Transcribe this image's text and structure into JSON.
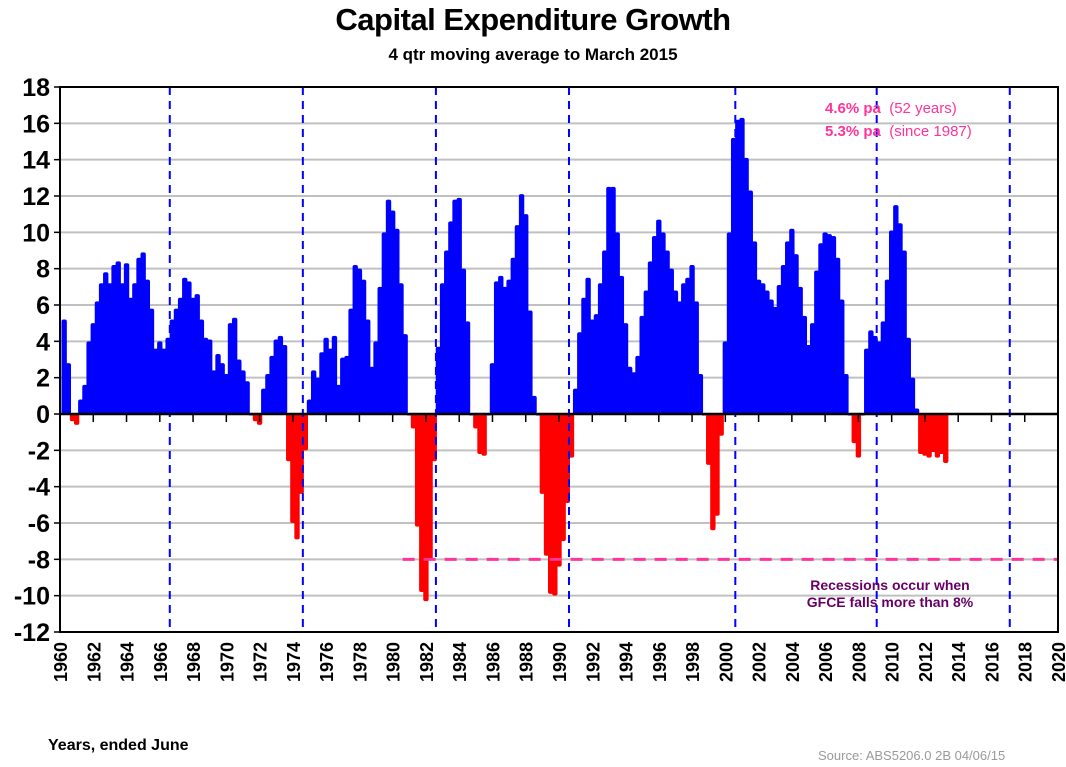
{
  "chart_data": {
    "type": "bar",
    "title": "Capital Expenditure Growth",
    "subtitle": "4 qtr moving average to March 2015",
    "xlabel": "Years, ended June",
    "ylabel": "",
    "source": "Source: ABS5206.0 2B   04/06/15",
    "ylim": [
      -12,
      18
    ],
    "xlim": [
      1960,
      2020
    ],
    "grid": true,
    "yticks": [
      18,
      16,
      14,
      12,
      10,
      8,
      6,
      4,
      2,
      0,
      -2,
      -4,
      -6,
      -8,
      -10,
      -12
    ],
    "xticks": [
      1960,
      1962,
      1964,
      1966,
      1968,
      1970,
      1972,
      1974,
      1976,
      1978,
      1980,
      1982,
      1984,
      1986,
      1988,
      1990,
      1992,
      1994,
      1996,
      1998,
      2000,
      2002,
      2004,
      2006,
      2008,
      2010,
      2012,
      2014,
      2016,
      2018,
      2020
    ],
    "colors": {
      "positive": "#0000ff",
      "negative": "#ff0000",
      "recession_line": "#0000ff",
      "threshold_line": "#ff3399",
      "grid": "#c0c0c0"
    },
    "series": [
      {
        "name": "Capital expenditure growth (4 qtr moving average, %)",
        "x_start": 1960.25,
        "x_step": 0.25,
        "values": [
          5.2,
          2.8,
          -0.4,
          -0.6,
          0.8,
          1.6,
          4.0,
          5.0,
          6.2,
          7.2,
          7.8,
          7.2,
          8.2,
          8.4,
          7.2,
          8.3,
          6.4,
          7.2,
          8.6,
          8.9,
          7.4,
          5.8,
          3.6,
          4.0,
          3.6,
          4.2,
          5.2,
          5.8,
          6.4,
          7.5,
          7.3,
          6.4,
          6.6,
          5.2,
          4.2,
          4.1,
          2.4,
          3.3,
          2.8,
          2.2,
          5.0,
          5.3,
          3.0,
          2.4,
          1.8,
          0.0,
          -0.4,
          -0.6,
          1.4,
          2.2,
          3.2,
          4.1,
          4.3,
          3.8,
          -2.6,
          -6.0,
          -6.9,
          -4.4,
          -2.0,
          0.8,
          2.4,
          2.0,
          3.4,
          4.2,
          3.6,
          4.3,
          1.6,
          3.1,
          3.2,
          5.8,
          8.2,
          8.0,
          7.4,
          5.2,
          2.6,
          4.0,
          7.0,
          10.0,
          11.8,
          11.2,
          10.2,
          7.2,
          4.4,
          0.0,
          -0.8,
          -6.2,
          -9.8,
          -10.3,
          -8.0,
          -2.6,
          3.7,
          7.2,
          9.0,
          10.6,
          11.8,
          11.9,
          8.0,
          5.1,
          0.0,
          -0.8,
          -2.2,
          -2.3,
          0.0,
          2.8,
          7.3,
          7.6,
          7.0,
          7.4,
          8.6,
          10.4,
          12.1,
          11.0,
          5.7,
          1.0,
          0.0,
          -4.4,
          -7.8,
          -9.9,
          -10.0,
          -8.4,
          -7.0,
          -4.9,
          -2.4,
          1.4,
          4.5,
          6.4,
          7.5,
          5.2,
          5.5,
          7.2,
          9.0,
          12.5,
          12.5,
          10.0,
          7.6,
          5.0,
          2.6,
          2.3,
          3.2,
          5.4,
          6.8,
          8.4,
          9.8,
          10.7,
          10.0,
          9.0,
          8.0,
          6.8,
          6.2,
          7.2,
          7.5,
          8.2,
          6.2,
          2.2,
          0.0,
          -2.8,
          -6.4,
          -5.6,
          -1.2,
          4.0,
          10.0,
          15.2,
          16.2,
          16.3,
          14.1,
          12.3,
          9.5,
          7.4,
          7.2,
          6.8,
          6.3,
          5.9,
          7.1,
          8.2,
          9.5,
          10.2,
          8.8,
          7.0,
          5.4,
          3.8,
          5.0,
          7.9,
          9.4,
          10.0,
          9.9,
          9.8,
          8.6,
          6.3,
          2.2,
          0.0,
          -1.6,
          -2.4,
          0.0,
          3.6,
          4.6,
          4.3,
          4.0,
          5.1,
          7.4,
          10.1,
          11.5,
          10.5,
          9.0,
          4.2,
          2.0,
          0.3,
          -2.2,
          -2.3,
          -2.4,
          -2.1,
          -2.4,
          -2.2,
          -2.7
        ]
      }
    ],
    "recession_markers": [
      1966.6,
      1974.6,
      1982.6,
      1990.6,
      2000.6,
      2009.1,
      2017.1
    ],
    "threshold": {
      "value": -8,
      "x_from": 1980.6,
      "x_to": 2020
    },
    "annotations": {
      "avg_52_value": "4.6% pa",
      "avg_52_note": "(52 years)",
      "avg_since_value": "5.3% pa",
      "avg_since_note": "(since 1987)",
      "recession_line1": "Recessions occur when",
      "recession_line2": "GFCE falls more than 8%"
    }
  }
}
